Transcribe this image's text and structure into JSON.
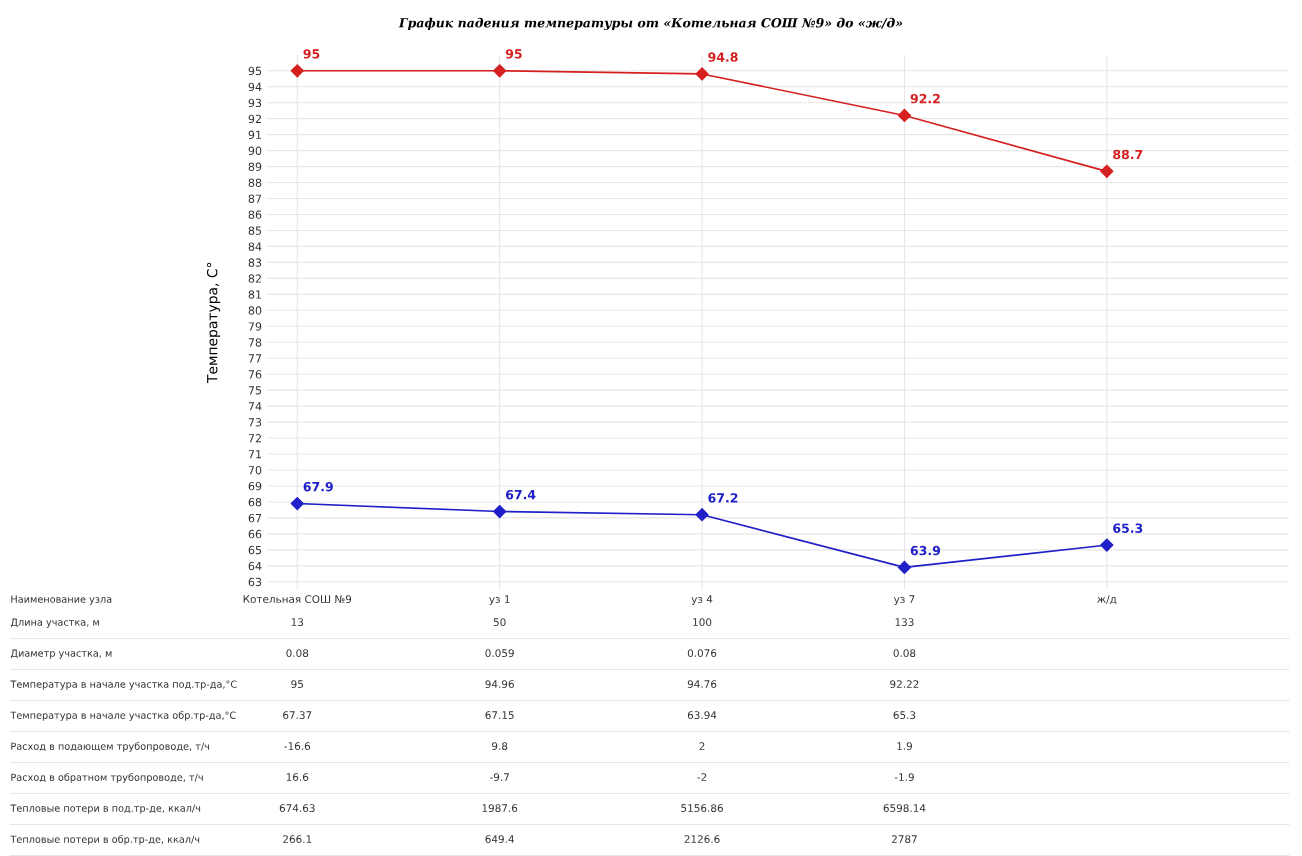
{
  "chart_data": {
    "type": "line",
    "title": "График падения температуры от «Котельная СОШ №9» до «ж/д»",
    "ylabel": "Температура, С°",
    "categories": [
      "Котельная СОШ №9",
      "уз 1",
      "уз 4",
      "уз 7",
      "ж/д"
    ],
    "series": [
      {
        "color": "#d42020",
        "values": [
          95,
          95,
          94.8,
          92.2,
          88.7
        ]
      },
      {
        "color": "#2020c8",
        "values": [
          67.9,
          67.4,
          67.2,
          63.9,
          65.3
        ]
      }
    ],
    "ylim": [
      62.5,
      96
    ],
    "yticks": [
      63,
      64,
      65,
      66,
      67,
      68,
      69,
      70,
      71,
      72,
      73,
      74,
      75,
      76,
      77,
      78,
      79,
      80,
      81,
      82,
      83,
      84,
      85,
      86,
      87,
      88,
      89,
      90,
      91,
      92,
      93,
      94,
      95
    ],
    "data_labels": true,
    "marker": "diamond",
    "line_style": "solid",
    "grid": true,
    "legend": false,
    "tick_labels": "y",
    "annotations": [
      "Наименование узла",
      "Длина участка, м",
      "13",
      "50",
      "100",
      "133",
      "Диаметр участка, м",
      "0.08",
      "0.059",
      "0.076",
      "0.08",
      "Температура в начале участка под.тр-да,°С",
      "95",
      "94.96",
      "94.76",
      "92.22",
      "Температура в начале участка обр.тр-да,°С",
      "67.37",
      "67.15",
      "63.94",
      "65.3",
      "Расход в подающем трубопроводе, т/ч",
      "-16.6",
      "9.8",
      "2",
      "1.9",
      "Расход в обратном трубопроводе, т/ч",
      "16.6",
      "-9.7",
      "-2",
      "-1.9",
      "Тепловые потери в под.тр-де, ккал/ч",
      "674.63",
      "1987.6",
      "5156.86",
      "6598.14",
      "Тепловые потери в обр.тр-де, ккал/ч",
      "266.1",
      "649.4",
      "2126.6",
      "2787"
    ]
  }
}
